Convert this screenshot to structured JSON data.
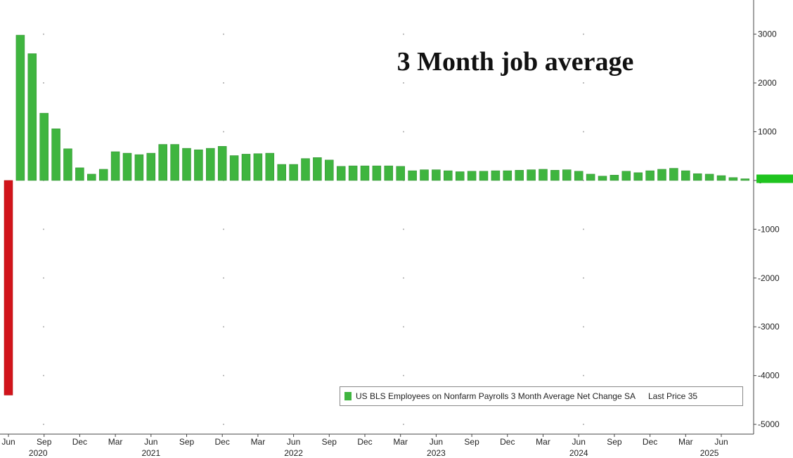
{
  "chart_data": {
    "type": "bar",
    "title": "3 Month job average",
    "xlabel": "",
    "ylabel": "",
    "ylim": [
      -5200,
      3700
    ],
    "y_ticks": [
      3000,
      2000,
      1000,
      0,
      -1000,
      -2000,
      -3000,
      -4000,
      -5000
    ],
    "y_tick_labels": [
      "3000",
      "2000",
      "1000",
      "0",
      "-1000",
      "-2000",
      "-3000",
      "-4000",
      "-5000"
    ],
    "x_month_labels": [
      {
        "index": 0,
        "label": "Jun"
      },
      {
        "index": 3,
        "label": "Sep"
      },
      {
        "index": 6,
        "label": "Dec"
      },
      {
        "index": 9,
        "label": "Mar"
      },
      {
        "index": 12,
        "label": "Jun"
      },
      {
        "index": 15,
        "label": "Sep"
      },
      {
        "index": 18,
        "label": "Dec"
      },
      {
        "index": 21,
        "label": "Mar"
      },
      {
        "index": 24,
        "label": "Jun"
      },
      {
        "index": 27,
        "label": "Sep"
      },
      {
        "index": 30,
        "label": "Dec"
      },
      {
        "index": 33,
        "label": "Mar"
      },
      {
        "index": 36,
        "label": "Jun"
      },
      {
        "index": 39,
        "label": "Sep"
      },
      {
        "index": 42,
        "label": "Dec"
      },
      {
        "index": 45,
        "label": "Mar"
      },
      {
        "index": 48,
        "label": "Jun"
      },
      {
        "index": 51,
        "label": "Sep"
      },
      {
        "index": 54,
        "label": "Dec"
      },
      {
        "index": 57,
        "label": "Mar"
      },
      {
        "index": 60,
        "label": "Jun"
      }
    ],
    "x_year_labels": [
      {
        "index": 2.5,
        "label": "2020"
      },
      {
        "index": 12,
        "label": "2021"
      },
      {
        "index": 24,
        "label": "2022"
      },
      {
        "index": 36,
        "label": "2023"
      },
      {
        "index": 48,
        "label": "2024"
      },
      {
        "index": 59,
        "label": "2025"
      }
    ],
    "series": [
      {
        "values": [
          -4400,
          2980,
          2600,
          1380,
          1060,
          650,
          260,
          130,
          230,
          590,
          560,
          530,
          560,
          740,
          740,
          660,
          630,
          660,
          700,
          510,
          540,
          550,
          560,
          330,
          330,
          450,
          470,
          420,
          290,
          300,
          300,
          300,
          300,
          290,
          200,
          220,
          220,
          200,
          180,
          190,
          190,
          200,
          200,
          210,
          220,
          230,
          210,
          220,
          190,
          130,
          90,
          110,
          190,
          160,
          200,
          230,
          250,
          200,
          140,
          130,
          100,
          60,
          35
        ],
        "colors": {
          "positive": "#3fb53f",
          "negative": "#d1141b"
        }
      }
    ],
    "legend": {
      "placement": "bottom-right",
      "text": "US BLS Employees on Nonfarm Payrolls 3 Month Average Net Change SA",
      "last_price_label": "Last Price",
      "last_price_value": "35"
    },
    "last_value_marker": {
      "value": 35,
      "color": "#1fc41f"
    },
    "grid": true
  }
}
